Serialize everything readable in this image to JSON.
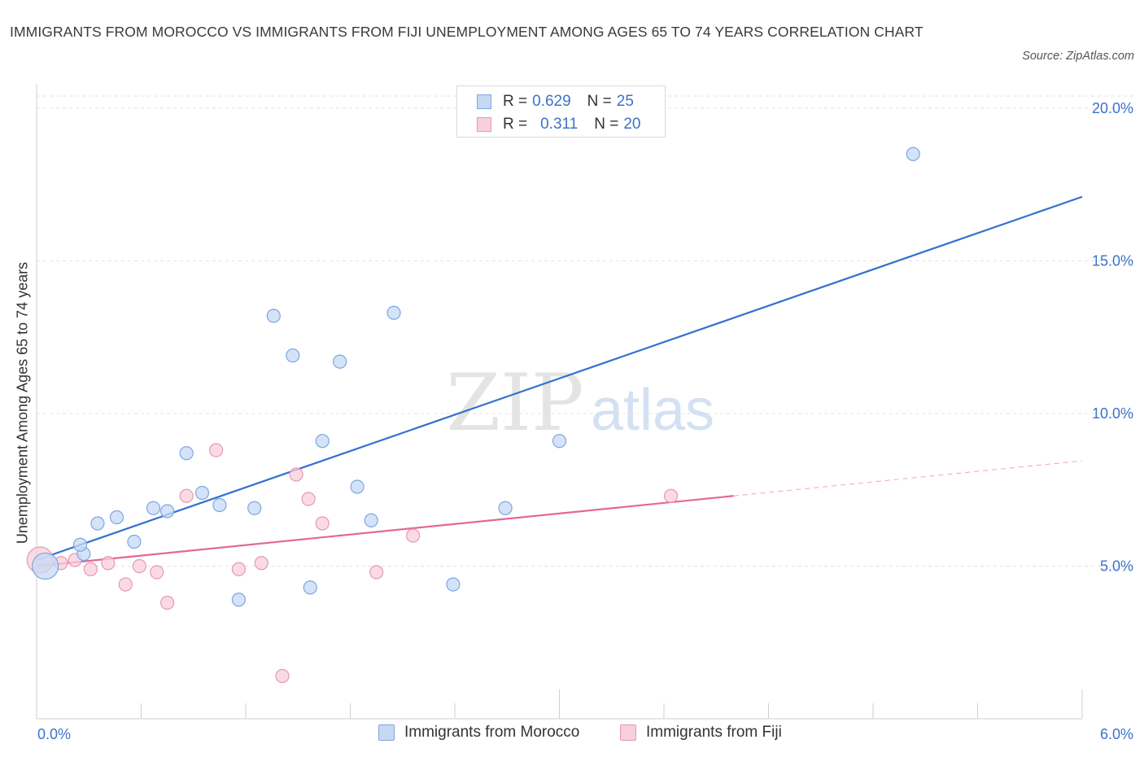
{
  "title": "IMMIGRANTS FROM MOROCCO VS IMMIGRANTS FROM FIJI UNEMPLOYMENT AMONG AGES 65 TO 74 YEARS CORRELATION CHART",
  "source": "Source: ZipAtlas.com",
  "watermark": {
    "zip": "ZIP",
    "atlas": "atlas"
  },
  "colors": {
    "morocco_fill": "#c5d9f5",
    "morocco_stroke": "#7ea6e0",
    "morocco_line": "#3370d1",
    "fiji_fill": "#f8cfdc",
    "fiji_stroke": "#e897b2",
    "fiji_line": "#e4688f",
    "axis_text": "#3b73c8",
    "grid": "#e3e3e3"
  },
  "legend": {
    "rows": [
      {
        "r_label": "R = ",
        "r_value": "0.629",
        "n_label": "N = ",
        "n_value": "25"
      },
      {
        "r_label": "R = ",
        "r_value": "0.311",
        "n_label": "N = ",
        "n_value": "20"
      }
    ]
  },
  "bottom_legend": [
    "Immigrants from Morocco",
    "Immigrants from Fiji"
  ],
  "chart_data": {
    "type": "scatter",
    "title": "IMMIGRANTS FROM MOROCCO VS IMMIGRANTS FROM FIJI UNEMPLOYMENT AMONG AGES 65 TO 74 YEARS CORRELATION CHART",
    "xlabel": "",
    "ylabel": "Unemployment Among Ages 65 to 74 years",
    "xlim": [
      0,
      6.0
    ],
    "ylim": [
      0,
      20.0
    ],
    "x_tick_labels": [
      "0.0%",
      "6.0%"
    ],
    "y_ticks": [
      5,
      10,
      15,
      20
    ],
    "y_tick_labels": [
      "5.0%",
      "10.0%",
      "15.0%",
      "20.0%"
    ],
    "grid": true,
    "legend_position": "top-center",
    "series": [
      {
        "name": "Immigrants from Morocco",
        "r": 0.629,
        "n": 25,
        "points": [
          {
            "x": 0.05,
            "y": 5.0,
            "big": true
          },
          {
            "x": 0.27,
            "y": 5.4
          },
          {
            "x": 0.25,
            "y": 5.7
          },
          {
            "x": 0.35,
            "y": 6.4
          },
          {
            "x": 0.46,
            "y": 6.6
          },
          {
            "x": 0.56,
            "y": 5.8
          },
          {
            "x": 0.67,
            "y": 6.9
          },
          {
            "x": 0.75,
            "y": 6.8
          },
          {
            "x": 0.86,
            "y": 8.7
          },
          {
            "x": 0.95,
            "y": 7.4
          },
          {
            "x": 1.05,
            "y": 7.0
          },
          {
            "x": 1.16,
            "y": 3.9
          },
          {
            "x": 1.25,
            "y": 6.9
          },
          {
            "x": 1.36,
            "y": 13.2
          },
          {
            "x": 1.47,
            "y": 11.9
          },
          {
            "x": 1.57,
            "y": 4.3
          },
          {
            "x": 1.64,
            "y": 9.1
          },
          {
            "x": 1.74,
            "y": 11.7
          },
          {
            "x": 1.84,
            "y": 7.6
          },
          {
            "x": 1.92,
            "y": 6.5
          },
          {
            "x": 2.05,
            "y": 13.3
          },
          {
            "x": 2.39,
            "y": 4.4
          },
          {
            "x": 2.69,
            "y": 6.9
          },
          {
            "x": 3.0,
            "y": 9.1
          },
          {
            "x": 5.03,
            "y": 18.5
          }
        ],
        "trend": {
          "x": [
            0.0,
            6.0
          ],
          "y": [
            5.2,
            17.1
          ]
        }
      },
      {
        "name": "Immigrants from Fiji",
        "r": 0.311,
        "n": 20,
        "points": [
          {
            "x": 0.02,
            "y": 5.2,
            "big": true
          },
          {
            "x": 0.14,
            "y": 5.1
          },
          {
            "x": 0.22,
            "y": 5.2
          },
          {
            "x": 0.31,
            "y": 4.9
          },
          {
            "x": 0.41,
            "y": 5.1
          },
          {
            "x": 0.51,
            "y": 4.4
          },
          {
            "x": 0.59,
            "y": 5.0
          },
          {
            "x": 0.69,
            "y": 4.8
          },
          {
            "x": 0.75,
            "y": 3.8
          },
          {
            "x": 0.86,
            "y": 7.3
          },
          {
            "x": 1.03,
            "y": 8.8
          },
          {
            "x": 1.16,
            "y": 4.9
          },
          {
            "x": 1.29,
            "y": 5.1
          },
          {
            "x": 1.41,
            "y": 1.4
          },
          {
            "x": 1.49,
            "y": 8.0
          },
          {
            "x": 1.56,
            "y": 7.2
          },
          {
            "x": 1.64,
            "y": 6.4
          },
          {
            "x": 1.95,
            "y": 4.8
          },
          {
            "x": 2.16,
            "y": 6.0
          },
          {
            "x": 3.64,
            "y": 7.3
          }
        ],
        "trend": {
          "x": [
            0.0,
            4.0
          ],
          "y": [
            5.0,
            7.3
          ]
        },
        "trend_dashed": {
          "x": [
            4.0,
            6.0
          ],
          "y": [
            7.3,
            8.45
          ]
        }
      }
    ]
  }
}
